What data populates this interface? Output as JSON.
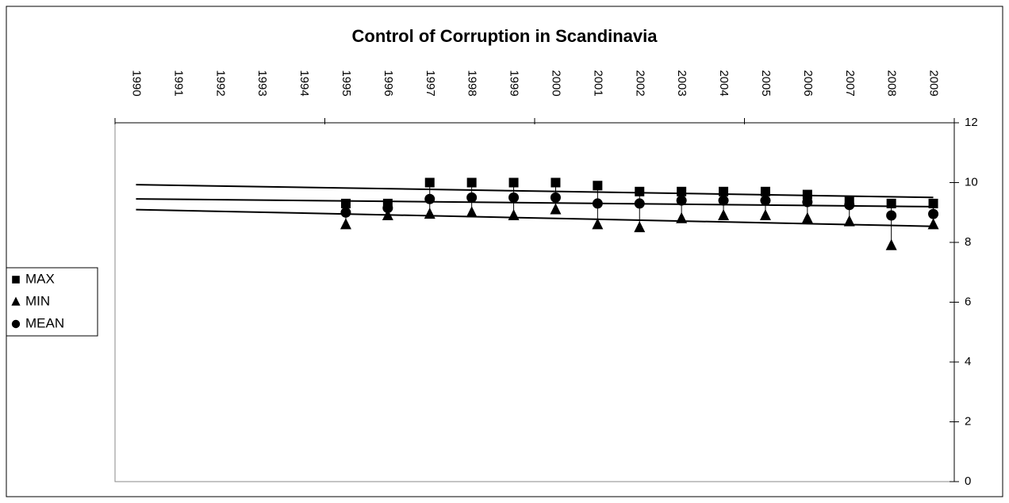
{
  "chart_data": {
    "type": "scatter",
    "title": "Control of Corruption in Scandinavia",
    "categories": [
      "1990",
      "1991",
      "1992",
      "1993",
      "1994",
      "1995",
      "1996",
      "1997",
      "1998",
      "1999",
      "2000",
      "2001",
      "2002",
      "2003",
      "2004",
      "2005",
      "2006",
      "2007",
      "2008",
      "2009"
    ],
    "series": [
      {
        "name": "MAX",
        "color": "#000000",
        "marker": "square",
        "values": [
          null,
          null,
          null,
          null,
          null,
          9.3,
          9.3,
          10.0,
          10.0,
          10.0,
          10.0,
          9.9,
          9.7,
          9.7,
          9.7,
          9.7,
          9.6,
          9.4,
          9.3,
          9.3
        ]
      },
      {
        "name": "MIN",
        "color": "#000000",
        "marker": "triangle",
        "values": [
          null,
          null,
          null,
          null,
          null,
          8.6,
          8.9,
          8.95,
          9.0,
          8.9,
          9.1,
          8.6,
          8.5,
          8.8,
          8.9,
          8.9,
          8.8,
          8.7,
          7.9,
          8.6
        ]
      },
      {
        "name": "MEAN",
        "color": "#000000",
        "marker": "circle",
        "values": [
          null,
          null,
          null,
          null,
          null,
          9.0,
          9.15,
          9.45,
          9.5,
          9.5,
          9.5,
          9.3,
          9.3,
          9.4,
          9.4,
          9.4,
          9.35,
          9.25,
          8.9,
          8.95
        ]
      }
    ],
    "ylim": [
      0,
      12
    ],
    "yticks": [
      0,
      2,
      4,
      6,
      8,
      10,
      12
    ],
    "xtick_interval": 5,
    "trendline": true,
    "high_low_lines": true,
    "grid": false,
    "legend": "left"
  }
}
